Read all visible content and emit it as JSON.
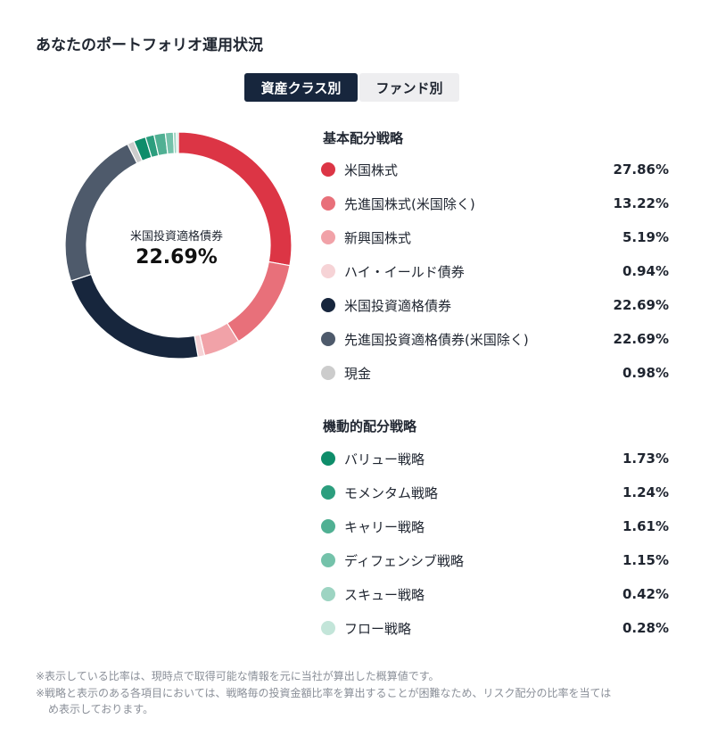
{
  "page": {
    "title": "あなたのポートフォリオ運用状況"
  },
  "tabs": [
    {
      "label": "資産クラス別",
      "active": true
    },
    {
      "label": "ファンド別",
      "active": false
    }
  ],
  "center": {
    "label": "米国投資適格債券",
    "value": "22.69%"
  },
  "chart_data": {
    "type": "pie",
    "hole": true,
    "sections": [
      {
        "title": "基本配分戦略",
        "items": [
          {
            "label": "米国株式",
            "value": 27.86,
            "display": "27.86%",
            "color": "#dc3545"
          },
          {
            "label": "先進国株式(米国除く)",
            "value": 13.22,
            "display": "13.22%",
            "color": "#e8707a"
          },
          {
            "label": "新興国株式",
            "value": 5.19,
            "display": "5.19%",
            "color": "#f1a2a8"
          },
          {
            "label": "ハイ・イールド債券",
            "value": 0.94,
            "display": "0.94%",
            "color": "#f6d3d6"
          },
          {
            "label": "米国投資適格債券",
            "value": 22.69,
            "display": "22.69%",
            "color": "#17263d"
          },
          {
            "label": "先進国投資適格債券(米国除く)",
            "value": 22.69,
            "display": "22.69%",
            "color": "#4e5a6b"
          },
          {
            "label": "現金",
            "value": 0.98,
            "display": "0.98%",
            "color": "#cccccc"
          }
        ]
      },
      {
        "title": "機動的配分戦略",
        "items": [
          {
            "label": "バリュー戦略",
            "value": 1.73,
            "display": "1.73%",
            "color": "#0e8d6a"
          },
          {
            "label": "モメンタム戦略",
            "value": 1.24,
            "display": "1.24%",
            "color": "#2c9e7e"
          },
          {
            "label": "キャリー戦略",
            "value": 1.61,
            "display": "1.61%",
            "color": "#50b093"
          },
          {
            "label": "ディフェンシブ戦略",
            "value": 1.15,
            "display": "1.15%",
            "color": "#74c2aa"
          },
          {
            "label": "スキュー戦略",
            "value": 0.42,
            "display": "0.42%",
            "color": "#9dd4c2"
          },
          {
            "label": "フロー戦略",
            "value": 0.28,
            "display": "0.28%",
            "color": "#c3e5d9"
          }
        ]
      }
    ]
  },
  "notes": [
    "※表示している比率は、現時点で取得可能な情報を元に当社が算出した概算値です。",
    "※戦略と表示のある各項目においては、戦略毎の投資金額比率を算出することが困難なため、リスク配分の比率を当ては",
    "め表示しております。"
  ]
}
